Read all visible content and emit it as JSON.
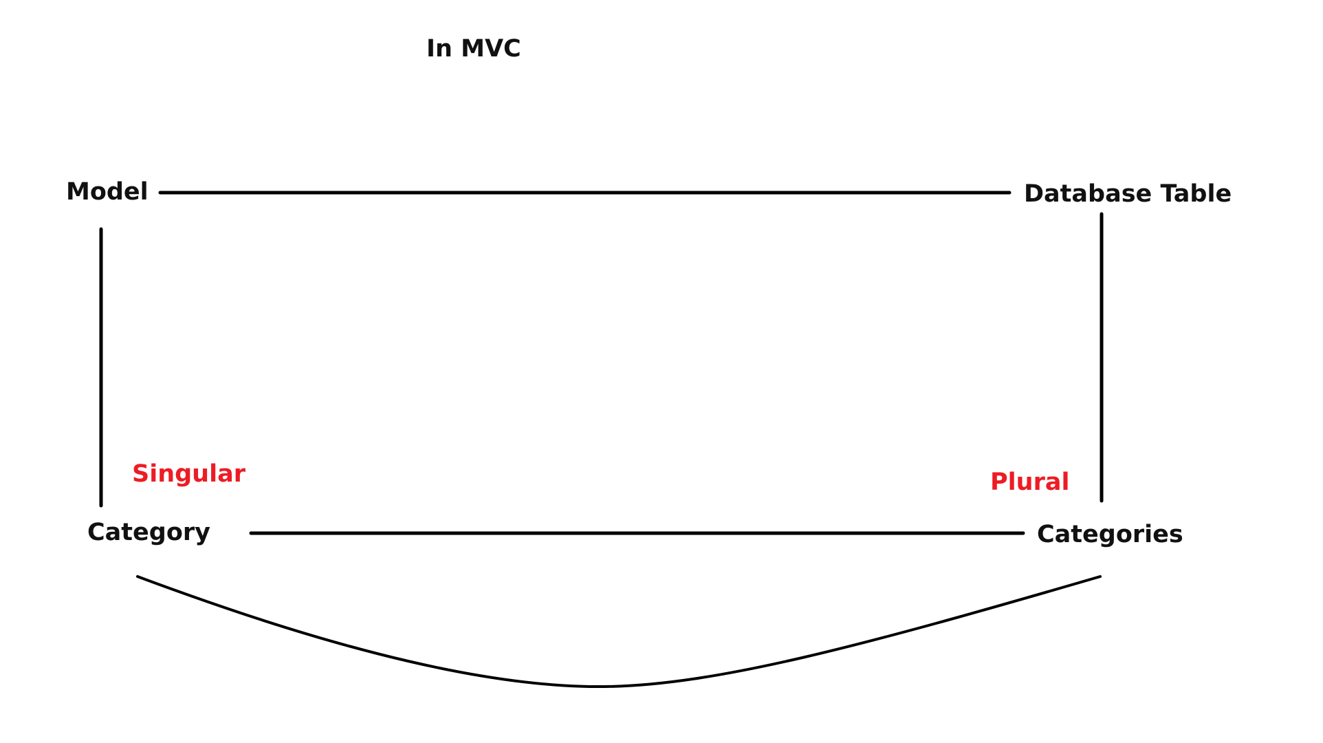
{
  "title": "In MVC",
  "nodes": {
    "model": "Model",
    "database_table": "Database Table",
    "category": "Category",
    "categories": "Categories"
  },
  "annotations": {
    "singular": "Singular",
    "plural": "Plural"
  },
  "colors": {
    "text": "#111111",
    "annotation": "#ed1c24",
    "lines": "#000000",
    "background": "#ffffff"
  }
}
